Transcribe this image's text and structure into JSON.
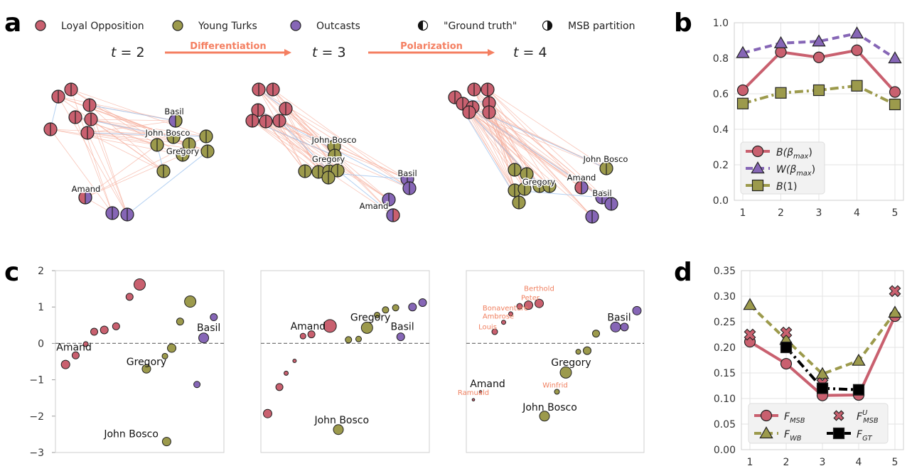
{
  "panel_labels": {
    "a": "a",
    "b": "b",
    "c": "c",
    "d": "d"
  },
  "colors": {
    "lo": "#c9606f",
    "yt": "#9c9a4c",
    "oc": "#8666b6",
    "msb": "#c9606f",
    "wb": "#9c9a4c",
    "gt": "#000000",
    "arrow": "#f47f61",
    "edge_pos": "#f6b1a0",
    "edge_neg": "#9fc4ee",
    "grid": "#e3e3e3",
    "ann_red": "#f08060"
  },
  "panel_a": {
    "legend": [
      {
        "label": "Loyal Opposition",
        "color": "lo",
        "icon": "circle"
      },
      {
        "label": "Young Turks",
        "color": "yt",
        "icon": "circle"
      },
      {
        "label": "Outcasts",
        "color": "oc",
        "icon": "circle"
      },
      {
        "label": "\"Ground truth\"",
        "icon": "half-left-circle"
      },
      {
        "label": "MSB partition",
        "icon": "half-right-circle"
      }
    ],
    "t_labels": [
      "t = 2",
      "t = 3",
      "t = 4"
    ],
    "arrows": [
      "Differentiation",
      "Polarization"
    ],
    "names": {
      "t2": [
        "Basil",
        "John Bosco",
        "Gregory",
        "Amand"
      ],
      "t3": [
        "John Bosco",
        "Gregory",
        "Basil",
        "Amand"
      ],
      "t4": [
        "John Bosco",
        "Gregory",
        "Amand",
        "Basil"
      ]
    }
  },
  "chart_data": [
    {
      "panel": "b",
      "type": "line",
      "x": [
        1,
        2,
        3,
        4,
        5
      ],
      "xticks": [
        "1",
        "2",
        "3",
        "4",
        "5"
      ],
      "ylim": [
        0.0,
        1.0
      ],
      "yticks": [
        "0.0",
        "0.2",
        "0.4",
        "0.6",
        "0.8",
        "1.0"
      ],
      "grid": true,
      "legend_position": "lower-left",
      "series": [
        {
          "name": "B(β_max)",
          "values": [
            0.62,
            0.835,
            0.805,
            0.845,
            0.61
          ],
          "color": "msb",
          "marker": "circle",
          "dash": "solid"
        },
        {
          "name": "W(β_max)",
          "values": [
            0.83,
            0.885,
            0.895,
            0.94,
            0.8
          ],
          "color": "oc",
          "marker": "triangle",
          "dash": "dashed"
        },
        {
          "name": "B(1)",
          "values": [
            0.545,
            0.605,
            0.62,
            0.645,
            0.54
          ],
          "color": "wb",
          "marker": "square",
          "dash": "dashdot"
        }
      ]
    },
    {
      "panel": "c",
      "type": "scatter",
      "ylim": [
        -3,
        2
      ],
      "yticks": [
        "−3",
        "−2",
        "−1",
        "0",
        "1",
        "2"
      ],
      "subplots": [
        {
          "points": [
            {
              "x": 0.06,
              "y": -0.58,
              "r": 6,
              "color": "lo"
            },
            {
              "x": 0.12,
              "y": -0.33,
              "r": 5,
              "color": "lo"
            },
            {
              "x": 0.18,
              "y": -0.02,
              "r": 3.5,
              "color": "lo"
            },
            {
              "x": 0.23,
              "y": 0.32,
              "r": 5,
              "color": "lo"
            },
            {
              "x": 0.29,
              "y": 0.37,
              "r": 5.5,
              "color": "lo"
            },
            {
              "x": 0.36,
              "y": 0.47,
              "r": 5,
              "color": "lo"
            },
            {
              "x": 0.44,
              "y": 1.28,
              "r": 5,
              "color": "lo"
            },
            {
              "x": 0.5,
              "y": 1.62,
              "r": 8,
              "color": "lo"
            },
            {
              "x": 0.54,
              "y": -0.7,
              "r": 6,
              "color": "yt"
            },
            {
              "x": 0.65,
              "y": -0.35,
              "r": 4,
              "color": "yt"
            },
            {
              "x": 0.69,
              "y": -0.13,
              "r": 6,
              "color": "yt"
            },
            {
              "x": 0.74,
              "y": 0.6,
              "r": 5,
              "color": "yt"
            },
            {
              "x": 0.8,
              "y": 1.15,
              "r": 8,
              "color": "yt"
            },
            {
              "x": 0.66,
              "y": -2.7,
              "r": 6,
              "color": "yt"
            },
            {
              "x": 0.88,
              "y": 0.15,
              "r": 7,
              "color": "oc"
            },
            {
              "x": 0.94,
              "y": 0.72,
              "r": 5,
              "color": "oc"
            },
            {
              "x": 0.84,
              "y": -1.13,
              "r": 4.5,
              "color": "oc"
            }
          ],
          "labels": [
            {
              "text": "Amand",
              "x": 0.11,
              "y": -0.2
            },
            {
              "text": "Gregory",
              "x": 0.54,
              "y": -0.6
            },
            {
              "text": "Basil",
              "x": 0.91,
              "y": 0.34
            },
            {
              "text": "John Bosco",
              "x": 0.45,
              "y": -2.58
            }
          ]
        },
        {
          "points": [
            {
              "x": 0.04,
              "y": -1.93,
              "r": 6,
              "color": "lo"
            },
            {
              "x": 0.11,
              "y": -1.2,
              "r": 5,
              "color": "lo"
            },
            {
              "x": 0.15,
              "y": -0.82,
              "r": 3,
              "color": "lo"
            },
            {
              "x": 0.2,
              "y": -0.48,
              "r": 2.5,
              "color": "lo"
            },
            {
              "x": 0.25,
              "y": 0.2,
              "r": 4,
              "color": "lo"
            },
            {
              "x": 0.3,
              "y": 0.25,
              "r": 5,
              "color": "lo"
            },
            {
              "x": 0.41,
              "y": 0.48,
              "r": 9,
              "color": "lo"
            },
            {
              "x": 0.46,
              "y": -2.37,
              "r": 7,
              "color": "yt"
            },
            {
              "x": 0.52,
              "y": 0.1,
              "r": 4.5,
              "color": "yt"
            },
            {
              "x": 0.58,
              "y": 0.12,
              "r": 4,
              "color": "yt"
            },
            {
              "x": 0.63,
              "y": 0.43,
              "r": 8,
              "color": "yt"
            },
            {
              "x": 0.69,
              "y": 0.78,
              "r": 4,
              "color": "yt"
            },
            {
              "x": 0.74,
              "y": 0.92,
              "r": 4.5,
              "color": "yt"
            },
            {
              "x": 0.8,
              "y": 0.98,
              "r": 4.5,
              "color": "yt"
            },
            {
              "x": 0.83,
              "y": 0.18,
              "r": 5.5,
              "color": "oc"
            },
            {
              "x": 0.9,
              "y": 1.0,
              "r": 5.5,
              "color": "oc"
            },
            {
              "x": 0.96,
              "y": 1.12,
              "r": 5.5,
              "color": "oc"
            }
          ],
          "labels": [
            {
              "text": "Amand",
              "x": 0.28,
              "y": 0.38
            },
            {
              "text": "Gregory",
              "x": 0.65,
              "y": 0.62
            },
            {
              "text": "Basil",
              "x": 0.84,
              "y": 0.37
            },
            {
              "text": "John Bosco",
              "x": 0.48,
              "y": -2.2
            }
          ]
        },
        {
          "points": [
            {
              "x": 0.04,
              "y": -1.55,
              "r": 1.8,
              "color": "lo"
            },
            {
              "x": 0.08,
              "y": -1.33,
              "r": 1.8,
              "color": "lo"
            },
            {
              "x": 0.16,
              "y": 0.32,
              "r": 4,
              "color": "lo"
            },
            {
              "x": 0.21,
              "y": 0.58,
              "r": 3,
              "color": "lo"
            },
            {
              "x": 0.25,
              "y": 0.81,
              "r": 3,
              "color": "lo"
            },
            {
              "x": 0.3,
              "y": 1.02,
              "r": 4,
              "color": "lo"
            },
            {
              "x": 0.35,
              "y": 1.05,
              "r": 6,
              "color": "lo"
            },
            {
              "x": 0.41,
              "y": 1.1,
              "r": 6,
              "color": "lo"
            },
            {
              "x": 0.44,
              "y": -2.0,
              "r": 7,
              "color": "yt"
            },
            {
              "x": 0.51,
              "y": -1.33,
              "r": 3.5,
              "color": "yt"
            },
            {
              "x": 0.56,
              "y": -0.8,
              "r": 8,
              "color": "yt"
            },
            {
              "x": 0.63,
              "y": -0.23,
              "r": 3.5,
              "color": "yt"
            },
            {
              "x": 0.68,
              "y": -0.2,
              "r": 5.5,
              "color": "yt"
            },
            {
              "x": 0.73,
              "y": 0.27,
              "r": 5,
              "color": "yt"
            },
            {
              "x": 0.84,
              "y": 0.45,
              "r": 7,
              "color": "oc"
            },
            {
              "x": 0.89,
              "y": 0.45,
              "r": 5.5,
              "color": "oc"
            },
            {
              "x": 0.96,
              "y": 0.9,
              "r": 6,
              "color": "oc"
            }
          ],
          "labels": [
            {
              "text": "Amand",
              "x": 0.12,
              "y": -1.2,
              "style": "black"
            },
            {
              "text": "Gregory",
              "x": 0.59,
              "y": -0.62,
              "style": "black"
            },
            {
              "text": "Basil",
              "x": 0.86,
              "y": 0.62,
              "style": "black"
            },
            {
              "text": "John Bosco",
              "x": 0.47,
              "y": -1.85,
              "style": "black"
            },
            {
              "text": "Berthold",
              "x": 0.41,
              "y": 1.44,
              "style": "red"
            },
            {
              "text": "Peter",
              "x": 0.36,
              "y": 1.19,
              "style": "red"
            },
            {
              "text": "Bonaventure",
              "x": 0.22,
              "y": 0.91,
              "style": "red"
            },
            {
              "text": "Ambrose",
              "x": 0.18,
              "y": 0.68,
              "style": "red"
            },
            {
              "text": "Louis",
              "x": 0.12,
              "y": 0.39,
              "style": "red"
            },
            {
              "text": "Ramuald",
              "x": 0.04,
              "y": -1.42,
              "style": "red"
            },
            {
              "text": "Winfrid",
              "x": 0.5,
              "y": -1.21,
              "style": "red"
            }
          ]
        }
      ]
    },
    {
      "panel": "d",
      "type": "line",
      "x": [
        1,
        2,
        3,
        4,
        5
      ],
      "xticks": [
        "1",
        "2",
        "3",
        "4",
        "5"
      ],
      "ylim": [
        0.0,
        0.35
      ],
      "yticks": [
        "0.00",
        "0.05",
        "0.10",
        "0.15",
        "0.20",
        "0.25",
        "0.30",
        "0.35"
      ],
      "grid": true,
      "legend_position": "lower-left",
      "series": [
        {
          "name": "F_MSB",
          "x": [
            1,
            2,
            3,
            4,
            5
          ],
          "values": [
            0.211,
            0.168,
            0.106,
            0.107,
            0.261
          ],
          "color": "msb",
          "marker": "circle",
          "dash": "solid"
        },
        {
          "name": "F_WB",
          "x": [
            1,
            2,
            3,
            4,
            5
          ],
          "values": [
            0.283,
            0.215,
            0.148,
            0.174,
            0.268
          ],
          "color": "wb",
          "marker": "triangle",
          "dash": "dashed"
        },
        {
          "name": "F^U_MSB",
          "x": [
            1,
            2,
            3,
            5
          ],
          "values": [
            0.225,
            0.229,
            0.13,
            0.31
          ],
          "color": "msb",
          "marker": "x",
          "dash": "none"
        },
        {
          "name": "F_GT",
          "x": [
            2,
            3,
            4
          ],
          "values": [
            0.2,
            0.12,
            0.117
          ],
          "color": "gt",
          "marker": "square",
          "dash": "dashdot"
        }
      ]
    }
  ]
}
